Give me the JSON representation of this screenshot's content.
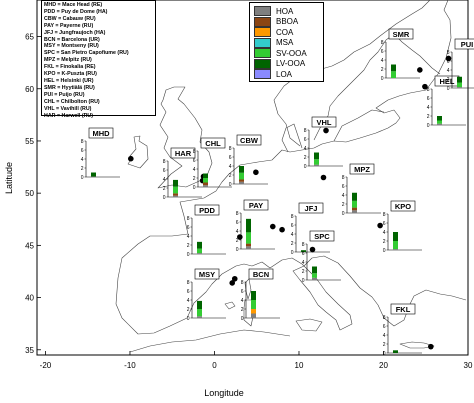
{
  "axes": {
    "xlabel": "Longitude",
    "ylabel": "Latitude",
    "x_ticks": [
      "-20",
      "-10",
      "0",
      "10",
      "20",
      "30"
    ],
    "y_ticks": [
      "35",
      "40",
      "45",
      "50",
      "55",
      "60",
      "65"
    ]
  },
  "site_legend": [
    "MHD = Mace Head (RE)",
    "PDD = Puy de Dome (HA)",
    "CBW = Cabauw (RU)",
    "PAY = Payerne (RU)",
    "JFJ = Jungfraujoch (HA)",
    "BCN = Barcelona (UR)",
    "MSY = Montseny (RU)",
    "SPC = San Pietro Capofiume (RU)",
    "MPZ = Melpitz (RU)",
    "FKL = Finokalia (RE)",
    "KPO = K-Puszta (RU)",
    "HEL = Helsinki (UR)",
    "SMR = Hyytiälä (RU)",
    "PUI = Puijo (RU)",
    "CHL = Chilbolton (RU)",
    "VHL = Vavihill (RU)",
    "HAR = Harwell (RU)"
  ],
  "component_legend": [
    {
      "label": "HOA",
      "color": "#7f7f7f"
    },
    {
      "label": "BBOA",
      "color": "#8b4513"
    },
    {
      "label": "COA",
      "color": "#ff9900"
    },
    {
      "label": "MSA",
      "color": "#33cccc"
    },
    {
      "label": "SV-OOA",
      "color": "#33cc33"
    },
    {
      "label": "LV-OOA",
      "color": "#006400"
    },
    {
      "label": "LOA",
      "color": "#8a8aff"
    }
  ],
  "inset_y_ticks": [
    "0",
    "2",
    "4",
    "6",
    "8"
  ],
  "chart_data": {
    "type": "scatter",
    "xlabel": "Longitude",
    "ylabel": "Latitude",
    "xlim": [
      -21,
      30
    ],
    "ylim": [
      34.5,
      68.5
    ],
    "sites": [
      {
        "code": "MHD",
        "lon": -9.9,
        "lat": 53.3
      },
      {
        "code": "HAR",
        "lon": -1.3,
        "lat": 51.6
      },
      {
        "code": "CHL",
        "lon": -1.4,
        "lat": 51.2
      },
      {
        "code": "CBW",
        "lon": 4.9,
        "lat": 52.0
      },
      {
        "code": "VHL",
        "lon": 13.2,
        "lat": 56.0
      },
      {
        "code": "SMR",
        "lon": 24.3,
        "lat": 61.8
      },
      {
        "code": "HEL",
        "lon": 24.9,
        "lat": 60.2
      },
      {
        "code": "PUI",
        "lon": 27.7,
        "lat": 62.9
      },
      {
        "code": "MPZ",
        "lon": 12.9,
        "lat": 51.5
      },
      {
        "code": "PDD",
        "lon": 3.0,
        "lat": 45.8
      },
      {
        "code": "PAY",
        "lon": 6.9,
        "lat": 46.8
      },
      {
        "code": "JFJ",
        "lon": 8.0,
        "lat": 46.5
      },
      {
        "code": "KPO",
        "lon": 19.6,
        "lat": 46.9
      },
      {
        "code": "BCN",
        "lon": 2.1,
        "lat": 41.4
      },
      {
        "code": "MSY",
        "lon": 2.4,
        "lat": 41.8
      },
      {
        "code": "SPC",
        "lon": 11.6,
        "lat": 44.6
      },
      {
        "code": "FKL",
        "lon": 25.6,
        "lat": 35.3
      }
    ],
    "insets": [
      {
        "code": "MHD",
        "values": [
          {
            "component": "HOA",
            "value": 0.1
          },
          {
            "component": "LV-OOA",
            "value": 0.9
          }
        ]
      },
      {
        "code": "HAR",
        "values": [
          {
            "component": "HOA",
            "value": 0.3
          },
          {
            "component": "BBOA",
            "value": 0.5
          },
          {
            "component": "SV-OOA",
            "value": 1.5
          },
          {
            "component": "LV-OOA",
            "value": 1.5
          }
        ]
      },
      {
        "code": "CHL",
        "values": [
          {
            "component": "HOA",
            "value": 0.4
          },
          {
            "component": "BBOA",
            "value": 0.6
          },
          {
            "component": "SV-OOA",
            "value": 1.0
          },
          {
            "component": "LV-OOA",
            "value": 1.0
          }
        ]
      },
      {
        "code": "CBW",
        "values": [
          {
            "component": "HOA",
            "value": 0.5
          },
          {
            "component": "BBOA",
            "value": 0.5
          },
          {
            "component": "SV-OOA",
            "value": 1.5
          },
          {
            "component": "LV-OOA",
            "value": 1.5
          }
        ]
      },
      {
        "code": "VHL",
        "values": [
          {
            "component": "HOA",
            "value": 0.3
          },
          {
            "component": "SV-OOA",
            "value": 1.2
          },
          {
            "component": "LV-OOA",
            "value": 1.5
          }
        ]
      },
      {
        "code": "SMR",
        "values": [
          {
            "component": "SV-OOA",
            "value": 1.5
          },
          {
            "component": "LV-OOA",
            "value": 1.5
          }
        ]
      },
      {
        "code": "HEL",
        "values": [
          {
            "component": "HOA",
            "value": 0.3
          },
          {
            "component": "SV-OOA",
            "value": 0.7
          },
          {
            "component": "LV-OOA",
            "value": 1.0
          }
        ]
      },
      {
        "code": "PUI",
        "values": [
          {
            "component": "HOA",
            "value": 0.2
          },
          {
            "component": "SV-OOA",
            "value": 1.0
          },
          {
            "component": "LV-OOA",
            "value": 1.3
          }
        ]
      },
      {
        "code": "MPZ",
        "values": [
          {
            "component": "HOA",
            "value": 0.6
          },
          {
            "component": "BBOA",
            "value": 0.6
          },
          {
            "component": "SV-OOA",
            "value": 1.5
          },
          {
            "component": "LV-OOA",
            "value": 1.8
          }
        ]
      },
      {
        "code": "PDD",
        "values": [
          {
            "component": "HOA",
            "value": 0.2
          },
          {
            "component": "SV-OOA",
            "value": 1.0
          },
          {
            "component": "LV-OOA",
            "value": 1.5
          }
        ]
      },
      {
        "code": "PAY",
        "values": [
          {
            "component": "HOA",
            "value": 0.6
          },
          {
            "component": "BBOA",
            "value": 0.6
          },
          {
            "component": "SV-OOA",
            "value": 2.5
          },
          {
            "component": "LV-OOA",
            "value": 3.0
          }
        ]
      },
      {
        "code": "JFJ",
        "values": [
          {
            "component": "LV-OOA",
            "value": 0.4
          }
        ]
      },
      {
        "code": "KPO",
        "values": [
          {
            "component": "HOA",
            "value": 0.2
          },
          {
            "component": "SV-OOA",
            "value": 1.8
          },
          {
            "component": "LV-OOA",
            "value": 2.0
          }
        ]
      },
      {
        "code": "BCN",
        "values": [
          {
            "component": "HOA",
            "value": 1.0
          },
          {
            "component": "COA",
            "value": 1.0
          },
          {
            "component": "SV-OOA",
            "value": 2.0
          },
          {
            "component": "LV-OOA",
            "value": 2.0
          }
        ]
      },
      {
        "code": "MSY",
        "values": [
          {
            "component": "HOA",
            "value": 0.4
          },
          {
            "component": "SV-OOA",
            "value": 1.6
          },
          {
            "component": "LV-OOA",
            "value": 1.8
          }
        ]
      },
      {
        "code": "SPC",
        "values": [
          {
            "component": "HOA",
            "value": 0.5
          },
          {
            "component": "SV-OOA",
            "value": 1.0
          },
          {
            "component": "LV-OOA",
            "value": 1.5
          }
        ]
      },
      {
        "code": "FKL",
        "values": [
          {
            "component": "LV-OOA",
            "value": 0.6
          }
        ]
      }
    ]
  }
}
